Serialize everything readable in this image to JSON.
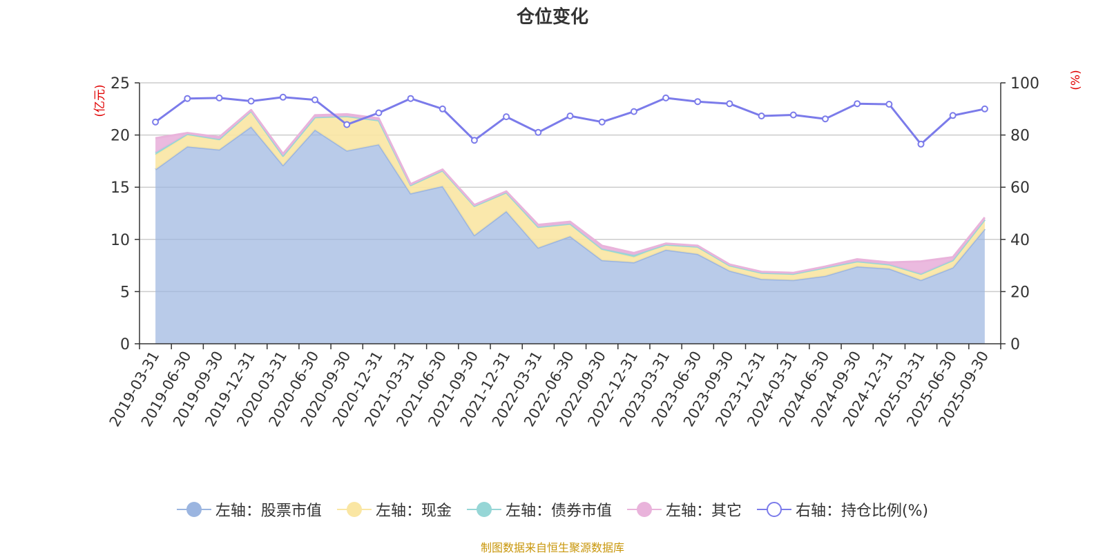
{
  "chart_data": {
    "type": "area",
    "title": "仓位变化",
    "left_axis_unit": "(亿元)",
    "right_axis_unit": "(%)",
    "ylim_left": [
      0,
      25
    ],
    "yticks_left": [
      0,
      5,
      10,
      15,
      20,
      25
    ],
    "ylim_right": [
      0,
      100
    ],
    "yticks_right": [
      0,
      20,
      40,
      60,
      80,
      100
    ],
    "categories": [
      "2019-03-31",
      "2019-06-30",
      "2019-09-30",
      "2019-12-31",
      "2020-03-31",
      "2020-06-30",
      "2020-09-30",
      "2020-12-31",
      "2021-03-31",
      "2021-06-30",
      "2021-09-30",
      "2021-12-31",
      "2022-03-31",
      "2022-06-30",
      "2022-09-30",
      "2022-12-31",
      "2023-03-31",
      "2023-06-30",
      "2023-09-30",
      "2023-12-31",
      "2024-03-31",
      "2024-06-30",
      "2024-09-30",
      "2024-12-31",
      "2025-03-31",
      "2025-06-30",
      "2025-09-30"
    ],
    "series": [
      {
        "name": "左轴：股票市值",
        "axis": "left",
        "type": "stacked-area",
        "color": "#9bb5e0",
        "values": [
          16.7,
          18.9,
          18.6,
          20.8,
          17.1,
          20.5,
          18.5,
          19.1,
          14.4,
          15.1,
          10.4,
          12.7,
          9.2,
          10.3,
          8.0,
          7.8,
          9.0,
          8.6,
          7.0,
          6.2,
          6.1,
          6.5,
          7.4,
          7.2,
          6.1,
          7.3,
          11.0
        ]
      },
      {
        "name": "左轴：现金",
        "axis": "left",
        "type": "stacked-area",
        "color": "#fae6a3",
        "values": [
          1.4,
          1.1,
          1.0,
          1.5,
          0.9,
          1.2,
          3.3,
          2.3,
          0.8,
          1.5,
          2.8,
          1.8,
          2.0,
          1.2,
          1.0,
          0.5,
          0.5,
          0.7,
          0.5,
          0.6,
          0.6,
          0.8,
          0.5,
          0.4,
          0.6,
          0.7,
          0.9
        ]
      },
      {
        "name": "左轴：债券市值",
        "axis": "left",
        "type": "stacked-area",
        "color": "#96d6d6",
        "values": [
          0.2,
          0.1,
          0,
          0,
          0,
          0,
          0,
          0,
          0,
          0,
          0,
          0,
          0,
          0,
          0.1,
          0.2,
          0,
          0,
          0,
          0,
          0,
          0,
          0,
          0,
          0,
          0,
          0
        ]
      },
      {
        "name": "左轴：其它",
        "axis": "left",
        "type": "stacked-area",
        "color": "#e9b3db",
        "values": [
          1.4,
          0.1,
          0.2,
          0.1,
          0.2,
          0.2,
          0.2,
          0.2,
          0.1,
          0.1,
          0.1,
          0.1,
          0.2,
          0.2,
          0.3,
          0.2,
          0.1,
          0.1,
          0.1,
          0.1,
          0.1,
          0.1,
          0.2,
          0.2,
          1.2,
          0.3,
          0.2
        ]
      },
      {
        "name": "右轴：持仓比例(%)",
        "axis": "right",
        "type": "line",
        "color": "#7b7bea",
        "values": [
          85,
          94,
          94.2,
          93,
          94.5,
          93.5,
          84,
          88.5,
          94,
          90,
          78,
          87,
          81,
          87.3,
          85,
          89,
          94.2,
          92.8,
          92,
          87.3,
          87.7,
          86.2,
          92,
          91.8,
          76.5,
          87.5,
          90
        ]
      }
    ]
  },
  "source_text": "制图数据来自恒生聚源数据库"
}
